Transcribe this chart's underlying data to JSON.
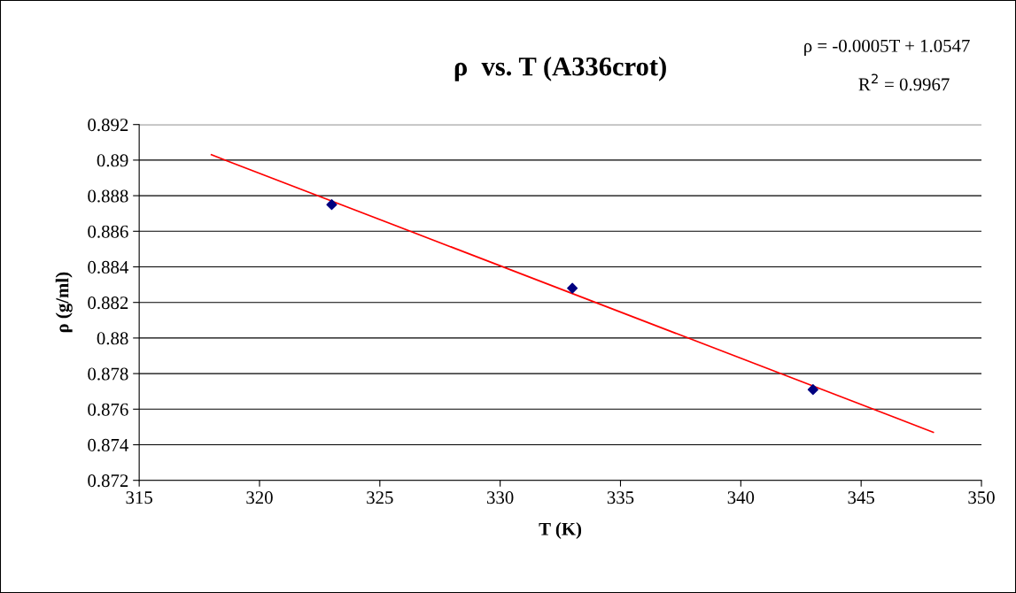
{
  "chart_data": {
    "type": "scatter",
    "title": "ρ  vs. T (A336crot)",
    "xlabel": "T (K)",
    "ylabel": "ρ (g/ml)",
    "annotations": [
      "ρ = -0.0005T + 1.0547",
      "R$^{2}$ = 0.9967"
    ],
    "x": [
      323,
      333,
      343
    ],
    "series": [
      {
        "color": "#000080",
        "marker": "diamond",
        "values": [
          0.8875,
          0.8828,
          0.8771
        ]
      },
      {
        "type": "line",
        "marker": "none",
        "color": "#ff0000",
        "x": [
          318,
          348
        ],
        "values": [
          0.8903,
          0.8747
        ]
      }
    ],
    "xlim": [
      315,
      350
    ],
    "xticks": [
      315,
      320,
      325,
      330,
      335,
      340,
      345,
      350
    ],
    "ylim": [
      0.872,
      0.892
    ],
    "yticks": [
      0.872,
      0.874,
      0.876,
      0.878,
      0.88,
      0.882,
      0.884,
      0.886,
      0.888,
      0.89,
      0.892
    ],
    "grid": "y",
    "legend": false
  }
}
